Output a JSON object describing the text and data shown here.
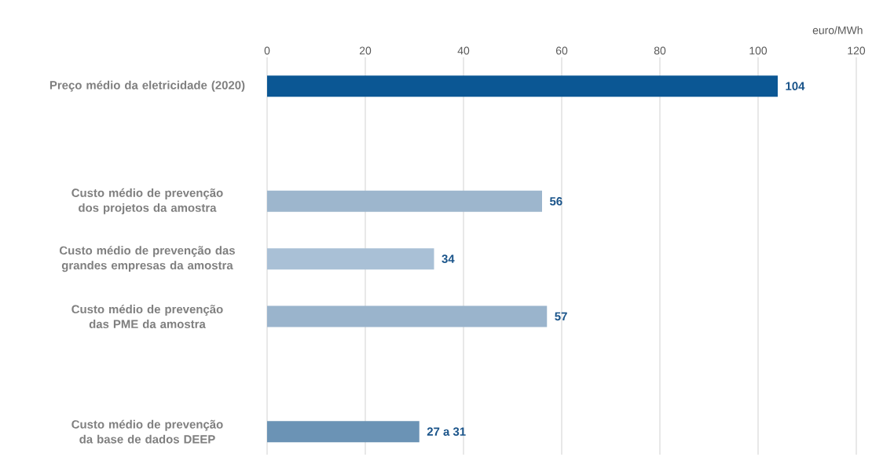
{
  "chart_data": {
    "type": "bar",
    "orientation": "horizontal",
    "xlabel": "euro/MWh",
    "categories": [
      "Preço médio da eletricidade (2020)",
      null,
      "Custo médio de prevenção dos projetos da amostra",
      "Custo médio de prevenção das grandes empresas da amostra",
      "Custo médio de prevenção das PME da amostra",
      null,
      "Custo médio de prevenção da base de dados DEEP"
    ],
    "values": [
      104,
      null,
      56,
      34,
      57,
      null,
      31
    ],
    "colors": [
      "#0b5794",
      "#ffffff",
      "#9db6cd",
      "#a9c0d6",
      "#9ab4cc",
      "#ffffff",
      "#6b93b5"
    ],
    "value_labels": [
      "104",
      null,
      "56",
      "34",
      "57",
      null,
      "27 a 31"
    ],
    "xlim": [
      0,
      120
    ],
    "xticks": [
      0,
      20,
      40,
      60,
      80,
      100,
      120
    ],
    "grid": "x"
  }
}
